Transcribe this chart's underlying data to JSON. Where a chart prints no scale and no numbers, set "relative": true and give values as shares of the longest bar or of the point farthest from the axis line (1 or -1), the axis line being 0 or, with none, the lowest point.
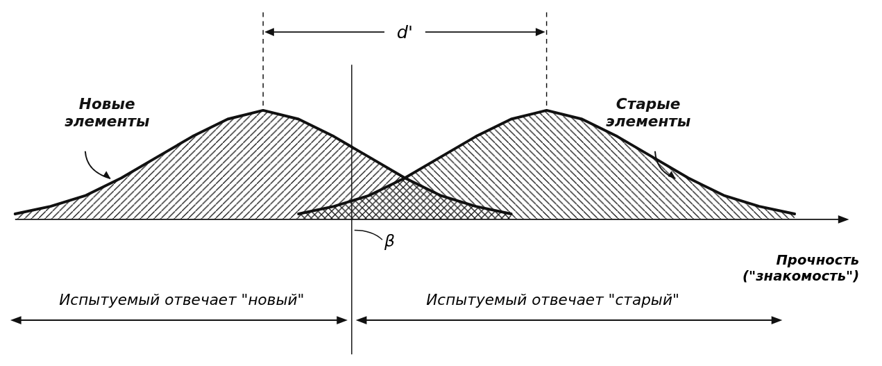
{
  "chart_data": {
    "type": "area",
    "relative": true,
    "categories": [
      null,
      null,
      null,
      null,
      null,
      null,
      null,
      null,
      null,
      null,
      null,
      null,
      null,
      null,
      null,
      null,
      null,
      null,
      null,
      null,
      null,
      null,
      null
    ],
    "series": [
      {
        "name": "Новые элементы",
        "color": "#111111",
        "values": [
          0.05,
          0.12,
          0.22,
          0.38,
          0.57,
          0.76,
          0.92,
          1,
          0.92,
          0.76,
          0.57,
          0.38,
          0.22,
          0.12,
          0.05,
          null,
          null,
          null,
          null,
          null,
          null,
          null,
          null
        ]
      },
      {
        "name": "Старые элементы",
        "color": "#111111",
        "values": [
          null,
          null,
          null,
          null,
          null,
          null,
          null,
          null,
          0.05,
          0.12,
          0.22,
          0.38,
          0.57,
          0.76,
          0.92,
          1,
          0.92,
          0.76,
          0.57,
          0.38,
          0.22,
          0.12,
          0.05
        ]
      }
    ],
    "xlabel": "Прочность\n(\"знакомость\")",
    "annotations": [
      "d'",
      "Испытуемый отвечает \"новый\"",
      "Испытуемый отвечает \"старый\"",
      "β"
    ]
  }
}
